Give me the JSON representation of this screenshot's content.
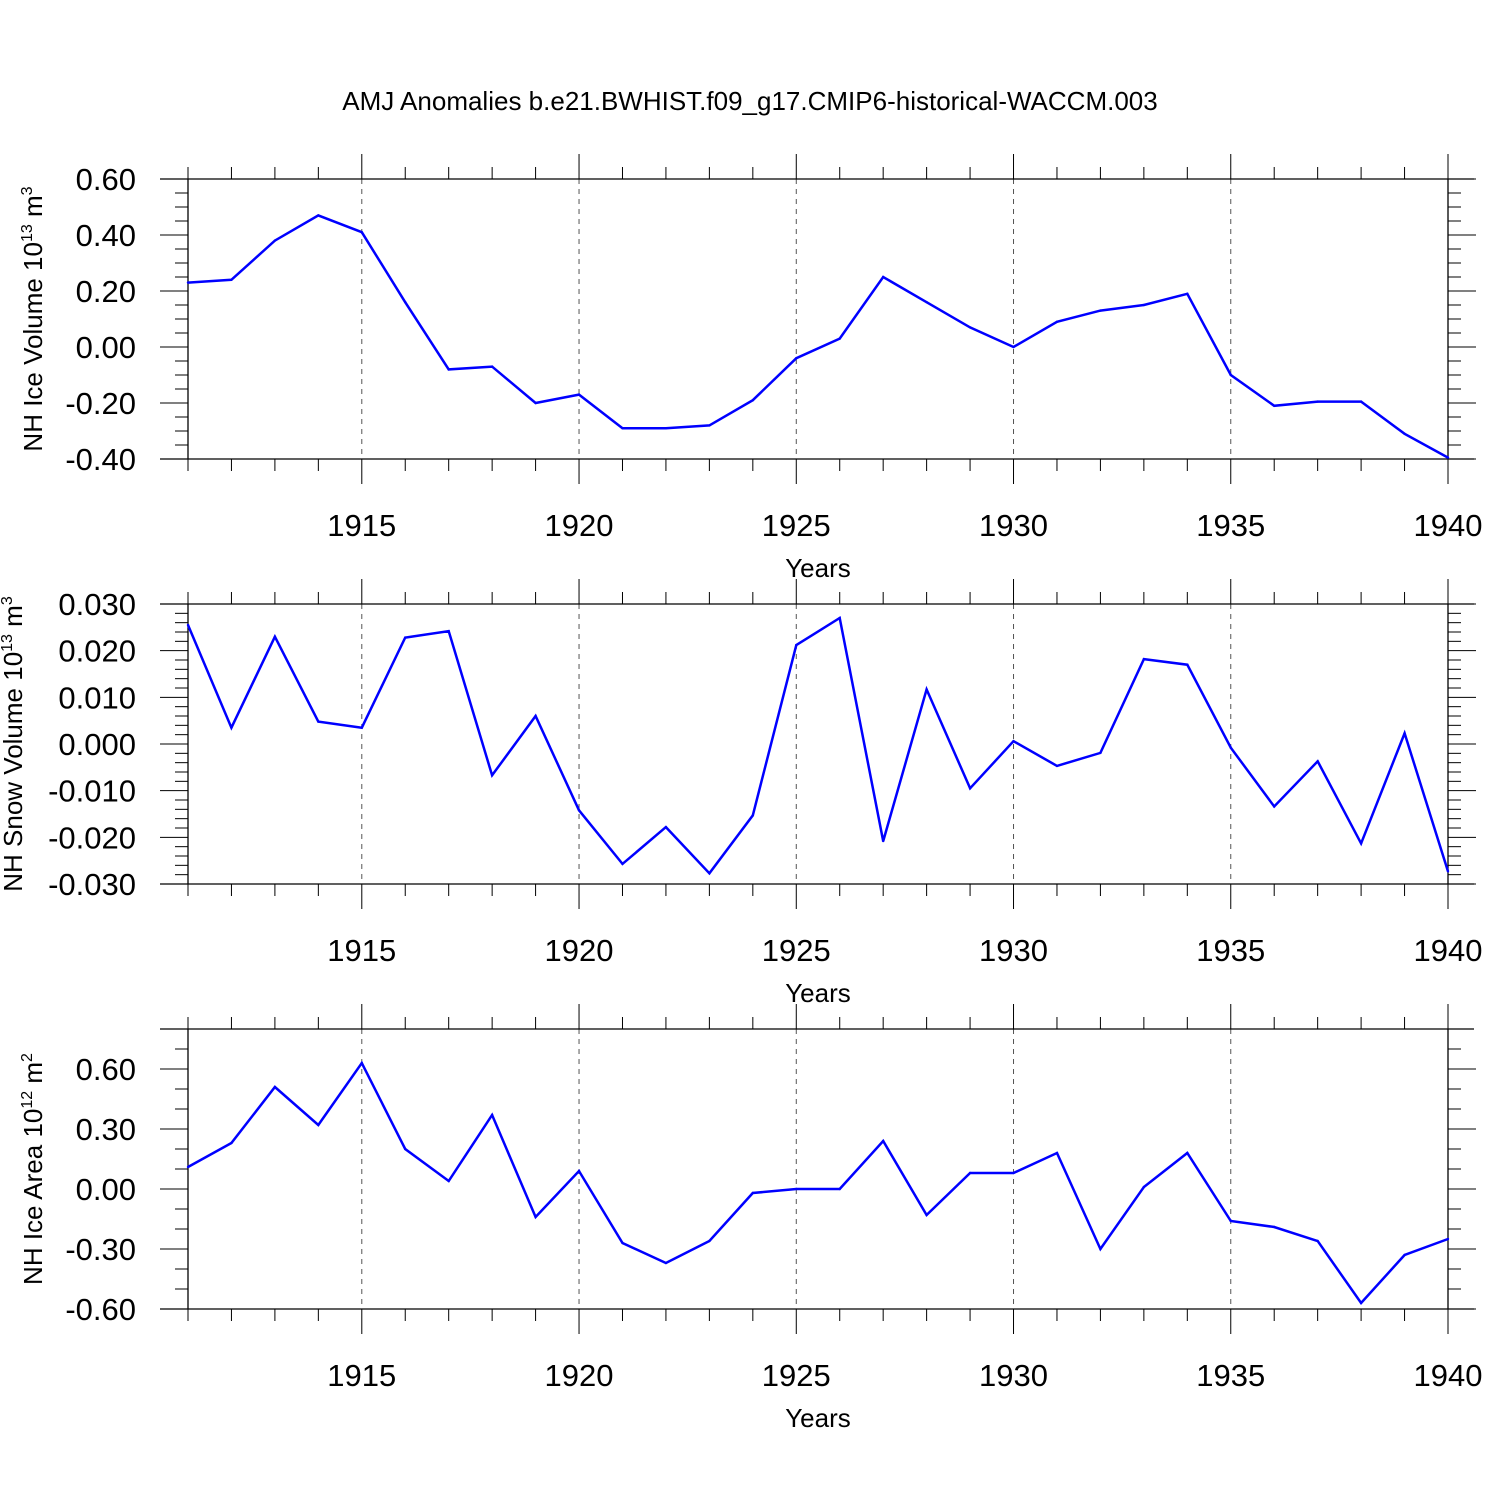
{
  "title": "AMJ Anomalies b.e21.BWHIST.f09_g17.CMIP6-historical-WACCM.003",
  "colors": {
    "series": "#0000ff",
    "axis": "#000000",
    "grid": "#555555"
  },
  "chart_data": [
    {
      "type": "line",
      "title": "",
      "xlabel": "Years",
      "ylabel": "NH Ice Volume 10",
      "ylabel_sup": "13",
      "ylabel_unit": "m",
      "ylabel_unit_sup": "3",
      "xlim": [
        1911,
        1940
      ],
      "ylim": [
        -0.4,
        0.6
      ],
      "x_ticks": [
        1915,
        1920,
        1925,
        1930,
        1935,
        1940
      ],
      "x_tick_labels": [
        "1915",
        "1920",
        "1925",
        "1930",
        "1935",
        "1940"
      ],
      "y_ticks": [
        -0.4,
        -0.2,
        0.0,
        0.2,
        0.4,
        0.6
      ],
      "y_tick_labels": [
        "-0.40",
        "-0.20",
        "0.00",
        "0.20",
        "0.40",
        "0.60"
      ],
      "y_minor_step": 0.05,
      "grid": "vertical dashed at major x ticks",
      "x": [
        1911,
        1912,
        1913,
        1914,
        1915,
        1916,
        1917,
        1918,
        1919,
        1920,
        1921,
        1922,
        1923,
        1924,
        1925,
        1926,
        1927,
        1928,
        1929,
        1930,
        1931,
        1932,
        1933,
        1934,
        1935,
        1936,
        1937,
        1938,
        1939,
        1940
      ],
      "series": [
        {
          "values": [
            0.23,
            0.24,
            0.38,
            0.47,
            0.41,
            0.16,
            -0.08,
            -0.07,
            -0.2,
            -0.17,
            -0.29,
            -0.29,
            -0.28,
            -0.19,
            -0.04,
            0.03,
            0.25,
            0.16,
            0.07,
            0.0,
            0.09,
            0.13,
            0.15,
            0.19,
            -0.1,
            -0.21,
            -0.195,
            -0.195,
            -0.31,
            -0.395
          ]
        }
      ]
    },
    {
      "type": "line",
      "title": "",
      "xlabel": "Years",
      "ylabel": "NH Snow Volume 10",
      "ylabel_sup": "13",
      "ylabel_unit": "m",
      "ylabel_unit_sup": "3",
      "xlim": [
        1911,
        1940
      ],
      "ylim": [
        -0.03,
        0.03
      ],
      "x_ticks": [
        1915,
        1920,
        1925,
        1930,
        1935,
        1940
      ],
      "x_tick_labels": [
        "1915",
        "1920",
        "1925",
        "1930",
        "1935",
        "1940"
      ],
      "y_ticks": [
        -0.03,
        -0.02,
        -0.01,
        0.0,
        0.01,
        0.02,
        0.03
      ],
      "y_tick_labels": [
        "-0.030",
        "-0.020",
        "-0.010",
        "0.000",
        "0.010",
        "0.020",
        "0.030"
      ],
      "y_minor_step": 0.002,
      "grid": "vertical dashed at major x ticks",
      "x": [
        1911,
        1912,
        1913,
        1914,
        1915,
        1916,
        1917,
        1918,
        1919,
        1920,
        1921,
        1922,
        1923,
        1924,
        1925,
        1926,
        1927,
        1928,
        1929,
        1930,
        1931,
        1932,
        1933,
        1934,
        1935,
        1936,
        1937,
        1938,
        1939,
        1940
      ],
      "series": [
        {
          "values": [
            0.0255,
            0.0035,
            0.023,
            0.0048,
            0.0035,
            0.0228,
            0.0242,
            -0.0067,
            0.006,
            -0.0142,
            -0.0257,
            -0.0178,
            -0.0277,
            -0.0153,
            0.0212,
            0.027,
            -0.0208,
            0.0117,
            -0.0095,
            0.0006,
            -0.0047,
            -0.0019,
            0.0182,
            0.017,
            -0.0008,
            -0.0134,
            -0.0037,
            -0.0213,
            0.0023,
            -0.0273
          ]
        }
      ]
    },
    {
      "type": "line",
      "title": "",
      "xlabel": "Years",
      "ylabel": "NH Ice Area 10",
      "ylabel_sup": "12",
      "ylabel_unit": "m",
      "ylabel_unit_sup": "2",
      "xlim": [
        1911,
        1940
      ],
      "ylim": [
        -0.6,
        0.8
      ],
      "x_ticks": [
        1915,
        1920,
        1925,
        1930,
        1935,
        1940
      ],
      "x_tick_labels": [
        "1915",
        "1920",
        "1925",
        "1930",
        "1935",
        "1940"
      ],
      "y_ticks": [
        -0.6,
        -0.3,
        0.0,
        0.3,
        0.6
      ],
      "y_tick_labels": [
        "-0.60",
        "-0.30",
        "0.00",
        "0.30",
        "0.60"
      ],
      "y_minor_step": 0.1,
      "grid": "vertical dashed at major x ticks",
      "x": [
        1911,
        1912,
        1913,
        1914,
        1915,
        1916,
        1917,
        1918,
        1919,
        1920,
        1921,
        1922,
        1923,
        1924,
        1925,
        1926,
        1927,
        1928,
        1929,
        1930,
        1931,
        1932,
        1933,
        1934,
        1935,
        1936,
        1937,
        1938,
        1939,
        1940
      ],
      "series": [
        {
          "values": [
            0.11,
            0.23,
            0.51,
            0.32,
            0.63,
            0.2,
            0.04,
            0.37,
            -0.14,
            0.09,
            -0.27,
            -0.37,
            -0.26,
            -0.02,
            0.0,
            0.0,
            0.24,
            -0.13,
            0.08,
            0.08,
            0.18,
            -0.3,
            0.01,
            0.18,
            -0.16,
            -0.19,
            -0.26,
            -0.57,
            -0.33,
            -0.25
          ]
        }
      ]
    }
  ]
}
